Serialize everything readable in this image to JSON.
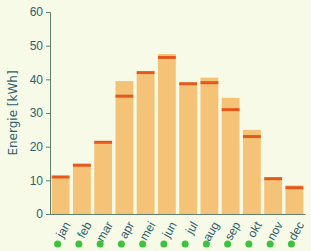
{
  "chart_data": {
    "type": "bar",
    "y_label": "Energie [kWh]",
    "categories": [
      "jan",
      "feb",
      "mar",
      "apr",
      "mei",
      "jun",
      "jul",
      "aug",
      "sep",
      "okt",
      "nov",
      "dec"
    ],
    "series": [
      {
        "type": "bar",
        "color": "#f5c377",
        "values": [
          11,
          14.5,
          21,
          39.5,
          42,
          47.5,
          38.5,
          40.5,
          34.5,
          25,
          10.5,
          8.5
        ]
      },
      {
        "type": "scatter",
        "marker": "dash",
        "color": "#e4581c",
        "values": [
          11,
          14.5,
          21.3,
          35,
          42,
          46.5,
          38.7,
          39,
          31,
          23,
          10.5,
          7.8
        ]
      }
    ],
    "ylim": [
      0,
      60
    ],
    "yticks": [
      0,
      10,
      20,
      30,
      40,
      50,
      60
    ],
    "grid": false
  }
}
